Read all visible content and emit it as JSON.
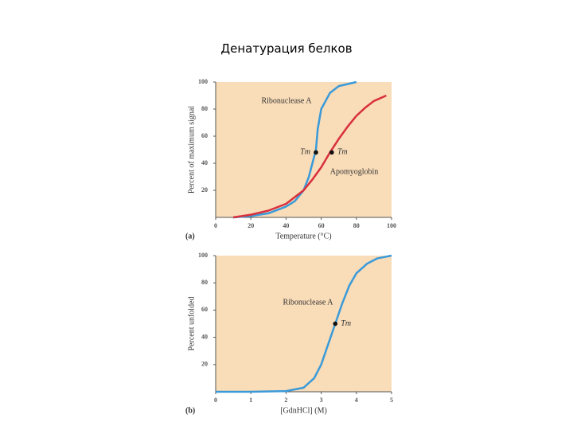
{
  "slide_title": "Денатурация белков",
  "chart_data": [
    {
      "type": "line",
      "panel": "(a)",
      "x_label": "Temperature (°C)",
      "y_label": "Percent of maximum signal",
      "xlim": [
        0,
        100
      ],
      "xticks": [
        0,
        20,
        40,
        60,
        80,
        100
      ],
      "ylim": [
        0,
        100
      ],
      "yticks": [
        20,
        40,
        60,
        80,
        100
      ],
      "background": "#f9dcb8",
      "series": [
        {
          "name": "Ribonuclease A",
          "color": "#3a9ad9",
          "x": [
            10,
            20,
            30,
            40,
            45,
            50,
            53,
            55,
            57,
            58,
            60,
            65,
            70,
            80
          ],
          "values": [
            0,
            1,
            3,
            8,
            12,
            20,
            30,
            40,
            50,
            65,
            80,
            92,
            97,
            100
          ]
        },
        {
          "name": "Apomyoglobin",
          "color": "#d8303c",
          "x": [
            10,
            20,
            30,
            40,
            50,
            55,
            60,
            65,
            70,
            75,
            80,
            85,
            90,
            97
          ],
          "values": [
            0,
            2,
            5,
            10,
            20,
            28,
            37,
            48,
            58,
            67,
            75,
            81,
            86,
            90
          ]
        }
      ],
      "markers": [
        {
          "label": "Tm",
          "x": 57,
          "y": 48
        },
        {
          "label": "Tm",
          "x": 66,
          "y": 48
        }
      ]
    },
    {
      "type": "line",
      "panel": "(b)",
      "x_label": "[GdnHCl] (M)",
      "y_label": "Percent unfolded",
      "xlim": [
        0,
        5
      ],
      "xticks": [
        0,
        1,
        2,
        3,
        4,
        5
      ],
      "ylim": [
        0,
        100
      ],
      "yticks": [
        20,
        40,
        60,
        80,
        100
      ],
      "background": "#f9dcb8",
      "series": [
        {
          "name": "Ribonuclease A",
          "color": "#3a9ad9",
          "x": [
            0,
            1,
            2,
            2.5,
            2.8,
            3,
            3.2,
            3.4,
            3.6,
            3.8,
            4,
            4.3,
            4.6,
            5
          ],
          "values": [
            0,
            0,
            0.5,
            3,
            10,
            20,
            35,
            50,
            65,
            78,
            87,
            94,
            98,
            100
          ]
        }
      ],
      "markers": [
        {
          "label": "Tm",
          "x": 3.4,
          "y": 50
        }
      ]
    }
  ]
}
